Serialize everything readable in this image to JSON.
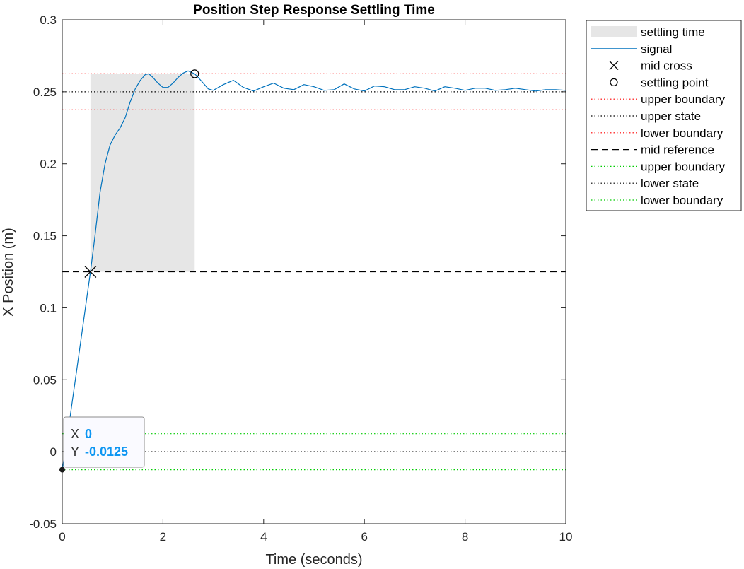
{
  "chart_data": {
    "type": "line",
    "title": "Position Step Response Settling Time",
    "xlabel": "Time (seconds)",
    "ylabel": "X Position (m)",
    "xlim": [
      0,
      10
    ],
    "ylim": [
      -0.05,
      0.3
    ],
    "x_ticks": [
      "0",
      "2",
      "4",
      "6",
      "8",
      "10"
    ],
    "y_ticks": [
      "-0.05",
      "0",
      "0.05",
      "0.1",
      "0.15",
      "0.2",
      "0.25",
      "0.3"
    ],
    "x_tick_values": [
      0,
      2,
      4,
      6,
      8,
      10
    ],
    "y_tick_values": [
      -0.05,
      0,
      0.05,
      0.1,
      0.15,
      0.2,
      0.25,
      0.3
    ],
    "grid": false,
    "legend_position": "outside-top-right",
    "settling_region": {
      "x_start": 0.56,
      "x_end": 2.63,
      "y_bottom": 0.125,
      "y_top": 0.2625,
      "color": "#e6e6e6"
    },
    "reference_lines": [
      {
        "name": "upper boundary",
        "y": 0.2625,
        "style": "dotted",
        "color": "#ff0000"
      },
      {
        "name": "upper state",
        "y": 0.25,
        "style": "dotted",
        "color": "#000000"
      },
      {
        "name": "lower boundary",
        "y": 0.2375,
        "style": "dotted",
        "color": "#ff0000"
      },
      {
        "name": "mid reference",
        "y": 0.125,
        "style": "dashed",
        "color": "#000000"
      },
      {
        "name": "upper boundary",
        "y": 0.0125,
        "style": "dotted",
        "color": "#00cc00"
      },
      {
        "name": "lower state",
        "y": 0,
        "style": "dotted",
        "color": "#000000"
      },
      {
        "name": "lower boundary",
        "y": -0.0125,
        "style": "dotted",
        "color": "#00cc00"
      }
    ],
    "series": [
      {
        "name": "signal",
        "color": "#0072bd",
        "x": [
          0,
          0.1,
          0.2,
          0.3,
          0.4,
          0.5,
          0.56,
          0.65,
          0.75,
          0.85,
          0.95,
          1.05,
          1.15,
          1.25,
          1.35,
          1.45,
          1.55,
          1.65,
          1.72,
          1.8,
          1.9,
          2.0,
          2.1,
          2.2,
          2.3,
          2.4,
          2.5,
          2.6,
          2.63,
          2.7,
          2.8,
          2.9,
          3.0,
          3.2,
          3.4,
          3.6,
          3.8,
          4.0,
          4.2,
          4.4,
          4.6,
          4.8,
          5.0,
          5.2,
          5.4,
          5.6,
          5.8,
          6.0,
          6.2,
          6.4,
          6.6,
          6.8,
          7.0,
          7.2,
          7.4,
          7.6,
          7.8,
          8.0,
          8.2,
          8.4,
          8.6,
          8.8,
          9.0,
          9.2,
          9.4,
          9.6,
          9.8,
          10.0
        ],
        "y": [
          -0.0125,
          0.01,
          0.035,
          0.06,
          0.085,
          0.11,
          0.125,
          0.15,
          0.18,
          0.2,
          0.213,
          0.22,
          0.225,
          0.232,
          0.243,
          0.252,
          0.258,
          0.262,
          0.2625,
          0.26,
          0.256,
          0.253,
          0.253,
          0.256,
          0.26,
          0.263,
          0.2645,
          0.263,
          0.2625,
          0.26,
          0.256,
          0.252,
          0.251,
          0.255,
          0.258,
          0.253,
          0.2505,
          0.2535,
          0.256,
          0.2525,
          0.2515,
          0.255,
          0.2535,
          0.251,
          0.2515,
          0.2555,
          0.252,
          0.2505,
          0.254,
          0.2535,
          0.2515,
          0.2515,
          0.2535,
          0.2525,
          0.2505,
          0.2535,
          0.2525,
          0.251,
          0.2525,
          0.2525,
          0.251,
          0.2515,
          0.2525,
          0.2515,
          0.2505,
          0.2515,
          0.2515,
          0.251
        ]
      }
    ],
    "markers": [
      {
        "name": "mid cross",
        "symbol": "x",
        "x": 0.56,
        "y": 0.125
      },
      {
        "name": "settling point",
        "symbol": "o",
        "x": 2.63,
        "y": 0.2625
      }
    ],
    "datatip": {
      "x_label": "X",
      "x_value": "0",
      "y_label": "Y",
      "y_value": "-0.0125",
      "point_x": 0,
      "point_y": -0.0125
    },
    "legend": [
      {
        "label": "settling time",
        "kind": "patch",
        "color": "#e6e6e6"
      },
      {
        "label": "signal",
        "kind": "line",
        "style": "solid",
        "color": "#0072bd"
      },
      {
        "label": "mid cross",
        "kind": "marker-x",
        "color": "#000000"
      },
      {
        "label": "settling point",
        "kind": "marker-o",
        "color": "#000000"
      },
      {
        "label": "upper boundary",
        "kind": "line",
        "style": "dotted",
        "color": "#ff0000"
      },
      {
        "label": "upper state",
        "kind": "line",
        "style": "dotted",
        "color": "#000000"
      },
      {
        "label": "lower boundary",
        "kind": "line",
        "style": "dotted",
        "color": "#ff0000"
      },
      {
        "label": "mid reference",
        "kind": "line",
        "style": "dashed",
        "color": "#000000"
      },
      {
        "label": "upper boundary",
        "kind": "line",
        "style": "dotted",
        "color": "#00cc00"
      },
      {
        "label": "lower state",
        "kind": "line",
        "style": "dotted",
        "color": "#000000"
      },
      {
        "label": "lower boundary",
        "kind": "line",
        "style": "dotted",
        "color": "#00cc00"
      }
    ]
  }
}
